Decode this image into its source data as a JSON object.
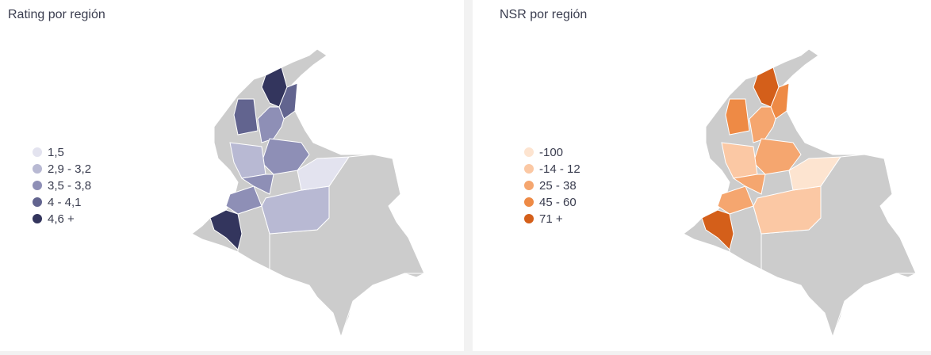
{
  "panels": [
    {
      "title": "Rating por región",
      "legend": [
        {
          "label": "1,5",
          "color": "#e3e3ef"
        },
        {
          "label": "2,9 - 3,2",
          "color": "#b8b9d3"
        },
        {
          "label": "3,5 - 3,8",
          "color": "#8e8fb6"
        },
        {
          "label": "4 - 4,1",
          "color": "#62648f"
        },
        {
          "label": "4,6 +",
          "color": "#33355d"
        }
      ]
    },
    {
      "title": "NSR por región",
      "legend": [
        {
          "label": "-100",
          "color": "#fde4d0"
        },
        {
          "label": "-14 - 12",
          "color": "#fbc8a4"
        },
        {
          "label": "25 - 38",
          "color": "#f5a66f"
        },
        {
          "label": "45 - 60",
          "color": "#ee8a45"
        },
        {
          "label": "71 +",
          "color": "#d45f1a"
        }
      ]
    }
  ]
}
